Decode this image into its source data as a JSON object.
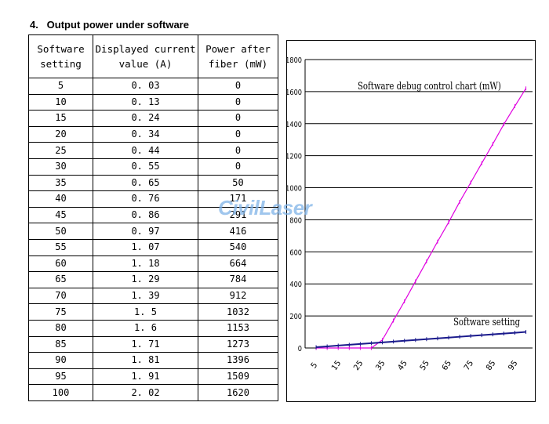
{
  "heading": "4.   Output power under software",
  "table": {
    "headers": [
      "Software setting",
      "Displayed current value (A)",
      "Power after fiber (mW)"
    ],
    "rows": [
      [
        "5",
        "0. 03",
        "0"
      ],
      [
        "10",
        "0. 13",
        "0"
      ],
      [
        "15",
        "0. 24",
        "0"
      ],
      [
        "20",
        "0. 34",
        "0"
      ],
      [
        "25",
        "0. 44",
        "0"
      ],
      [
        "30",
        "0. 55",
        "0"
      ],
      [
        "35",
        "0. 65",
        "50"
      ],
      [
        "40",
        "0. 76",
        "171"
      ],
      [
        "45",
        "0. 86",
        "291"
      ],
      [
        "50",
        "0. 97",
        "416"
      ],
      [
        "55",
        "1. 07",
        "540"
      ],
      [
        "60",
        "1. 18",
        "664"
      ],
      [
        "65",
        "1. 29",
        "784"
      ],
      [
        "70",
        "1. 39",
        "912"
      ],
      [
        "75",
        "1. 5",
        "1032"
      ],
      [
        "80",
        "1. 6",
        "1153"
      ],
      [
        "85",
        "1. 71",
        "1273"
      ],
      [
        "90",
        "1. 81",
        "1396"
      ],
      [
        "95",
        "1. 91",
        "1509"
      ],
      [
        "100",
        "2. 02",
        "1620"
      ]
    ]
  },
  "watermark": "CivilLaser",
  "chart_data": {
    "type": "line",
    "title": "Software debug control chart (mW)",
    "xlabel": "",
    "ylabel": "",
    "x_tick_labels": [
      "5",
      "15",
      "25",
      "35",
      "45",
      "55",
      "65",
      "75",
      "85",
      "95"
    ],
    "y_tick_labels": [
      "0",
      "200",
      "400",
      "600",
      "800",
      "1000",
      "1200",
      "1400",
      "1600",
      "1800"
    ],
    "ylim": [
      0,
      1800
    ],
    "grid": true,
    "x": [
      5,
      10,
      15,
      20,
      25,
      30,
      35,
      40,
      45,
      50,
      55,
      60,
      65,
      70,
      75,
      80,
      85,
      90,
      95,
      100
    ],
    "series": [
      {
        "name": "",
        "color": "#e000e0",
        "values": [
          0,
          0,
          0,
          0,
          0,
          0,
          50,
          171,
          291,
          416,
          540,
          664,
          784,
          912,
          1032,
          1153,
          1273,
          1396,
          1509,
          1620
        ]
      },
      {
        "name": "Software setting",
        "color": "#1a1a8c",
        "values": [
          5,
          10,
          15,
          20,
          25,
          30,
          35,
          40,
          45,
          50,
          55,
          60,
          65,
          70,
          75,
          80,
          85,
          90,
          95,
          100
        ]
      }
    ]
  }
}
